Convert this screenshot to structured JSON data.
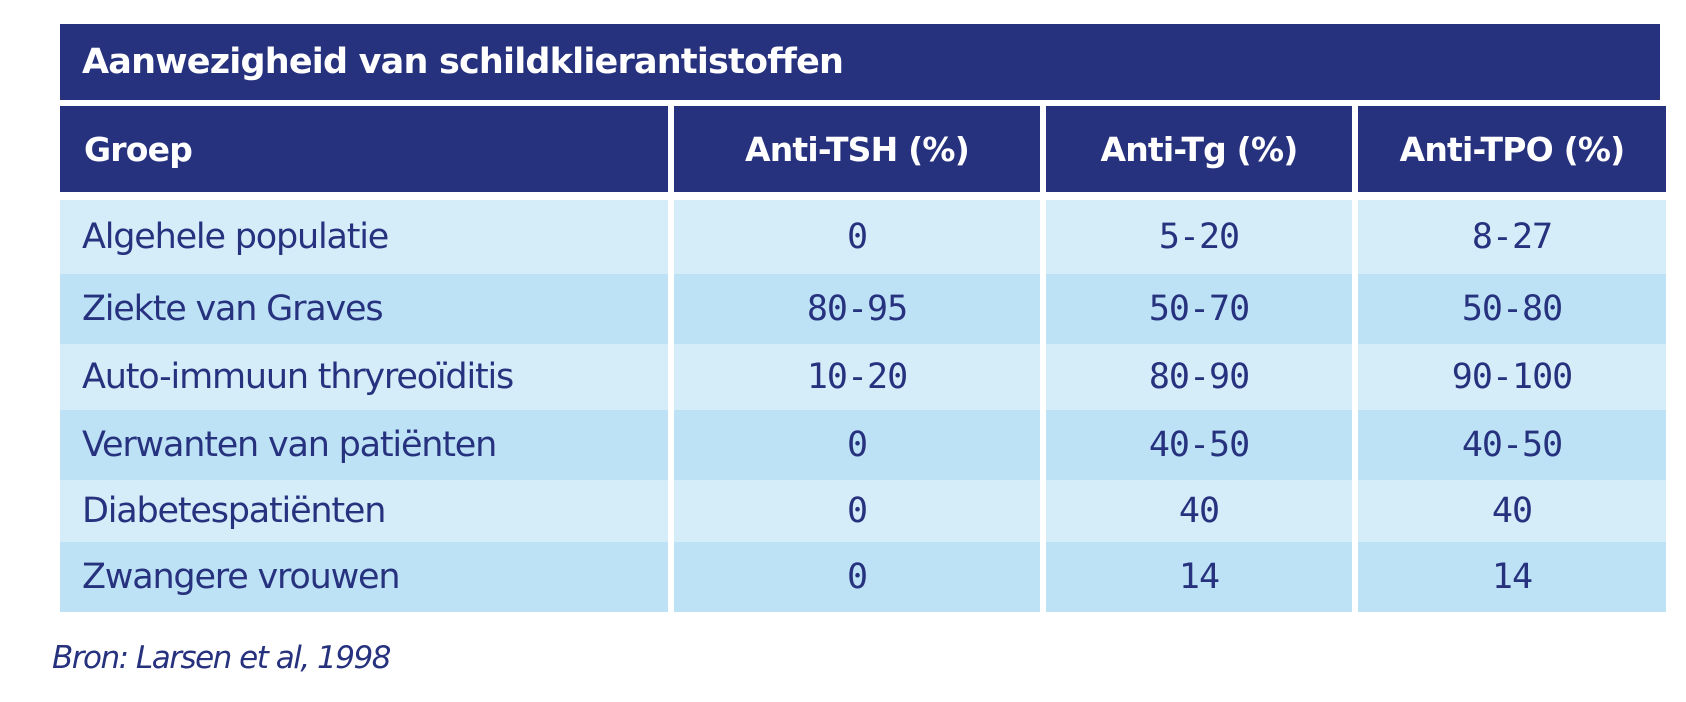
{
  "table": {
    "title": "Aanwezigheid van schildklierantistoffen",
    "headers": [
      "Groep",
      "Anti-TSH (%)",
      "Anti-Tg (%)",
      "Anti-TPO (%)"
    ],
    "rows": [
      [
        "Algehele populatie",
        "0",
        "5-20",
        "8-27"
      ],
      [
        "Ziekte van Graves",
        "80-95",
        "50-70",
        "50-80"
      ],
      [
        "Auto-immuun thryreoïditis",
        "10-20",
        "80-90",
        "90-100"
      ],
      [
        "Verwanten van patiënten",
        "0",
        "40-50",
        "40-50"
      ],
      [
        "Diabetespatiënten",
        "0",
        "40",
        "40"
      ],
      [
        "Zwangere vrouwen",
        "0",
        "14",
        "14"
      ]
    ]
  },
  "source": "Bron: Larsen et al, 1998",
  "colors": {
    "header_bg": "#27327f",
    "row_light": "#d5ecf9",
    "row_dark": "#bde2f5",
    "text": "#27327f"
  }
}
